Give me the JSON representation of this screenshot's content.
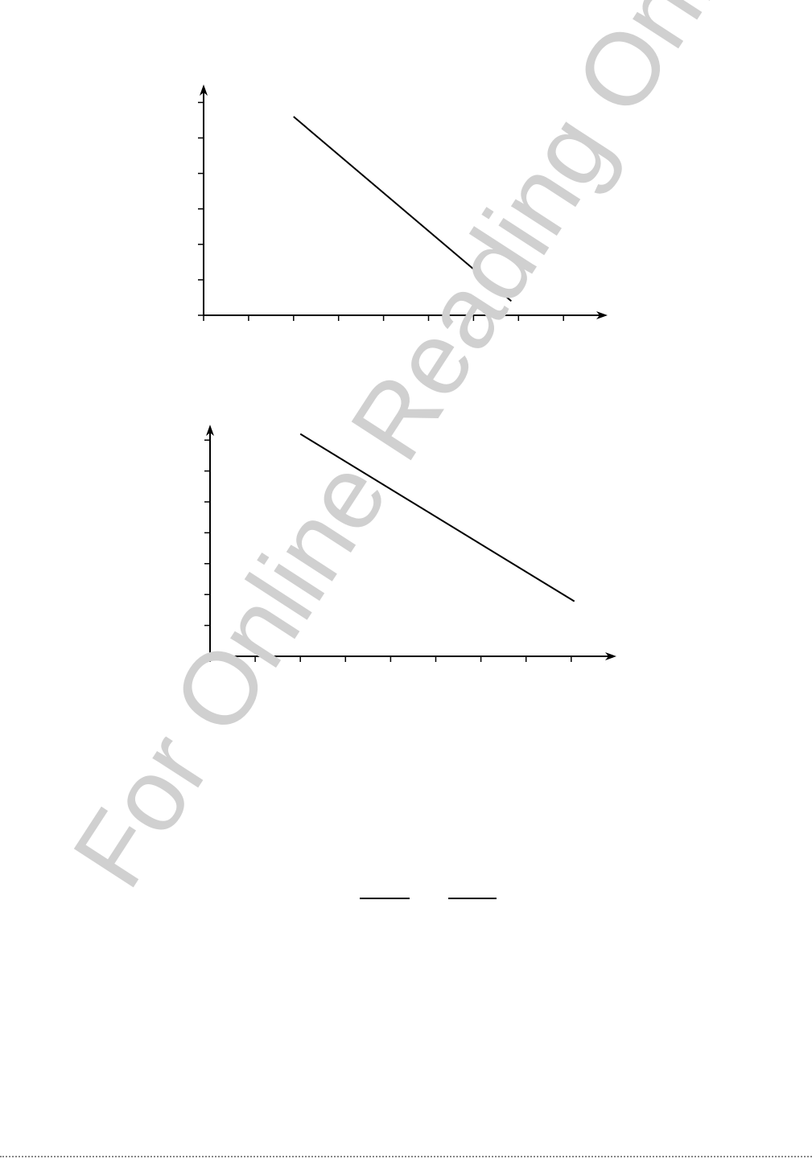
{
  "chart_data": [
    {
      "type": "line",
      "title": "",
      "xlabel": "",
      "ylabel": "",
      "xlim": [
        0,
        9
      ],
      "ylim": [
        0,
        6.2
      ],
      "x_ticks": [
        0,
        1,
        2,
        3,
        4,
        5,
        6,
        7,
        8
      ],
      "y_ticks": [
        0,
        1,
        2,
        3,
        4,
        5,
        6
      ],
      "grid": false,
      "series": [
        {
          "x": [
            2.0,
            6.84
          ],
          "y": [
            5.6,
            0.4
          ]
        }
      ]
    },
    {
      "type": "line",
      "title": "",
      "xlabel": "",
      "ylabel": "",
      "xlim": [
        0,
        9
      ],
      "ylim": [
        0,
        7.5
      ],
      "x_ticks": [
        0,
        1,
        2,
        3,
        4,
        5,
        6,
        7,
        8
      ],
      "y_ticks": [
        0,
        1,
        2,
        3,
        4,
        5,
        6,
        7
      ],
      "grid": false,
      "series": [
        {
          "x": [
            2.0,
            8.07
          ],
          "y": [
            7.2,
            1.78
          ]
        }
      ]
    }
  ],
  "watermark": {
    "text": "For Online Reading Only",
    "color": "#d0d0d0"
  },
  "answer_blanks": 2
}
